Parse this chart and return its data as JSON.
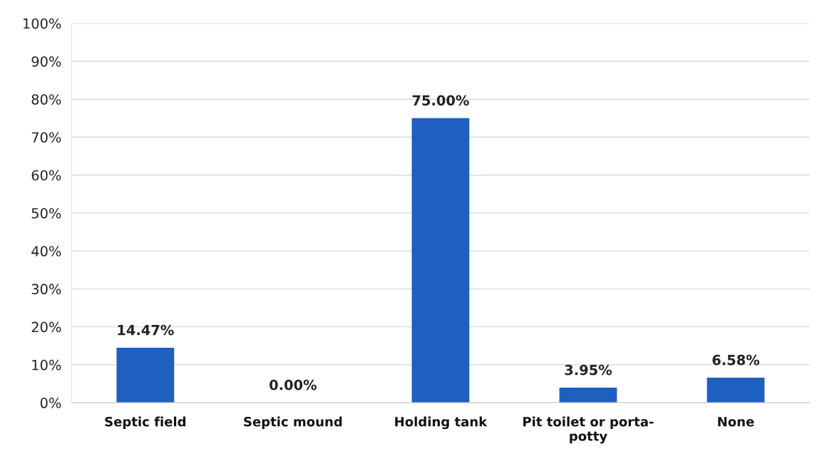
{
  "chart_data": {
    "type": "bar",
    "categories": [
      "Septic field",
      "Septic mound",
      "Holding tank",
      "Pit toilet or porta-\npotty",
      "None"
    ],
    "values": [
      14.47,
      0,
      75,
      3.95,
      6.58
    ],
    "value_labels": [
      "14.47%",
      "0.00%",
      "75.00%",
      "3.95%",
      "6.58%"
    ],
    "color": "#1f5fbf",
    "ylim": [
      0,
      100
    ],
    "yticks": [
      {
        "value": 0,
        "label": "0%"
      },
      {
        "value": 10,
        "label": "10%"
      },
      {
        "value": 20,
        "label": "20%"
      },
      {
        "value": 30,
        "label": "30%"
      },
      {
        "value": 40,
        "label": "40%"
      },
      {
        "value": 50,
        "label": "50%"
      },
      {
        "value": 60,
        "label": "60%"
      },
      {
        "value": 70,
        "label": "70%"
      },
      {
        "value": 80,
        "label": "80%"
      },
      {
        "value": 90,
        "label": "90%"
      },
      {
        "value": 100,
        "label": "100%"
      }
    ],
    "grid": "y",
    "legend": false
  }
}
